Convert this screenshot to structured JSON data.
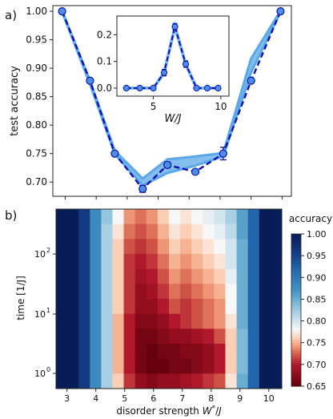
{
  "panel_a": {
    "panel_label": "a)",
    "chart_data": {
      "type": "line",
      "ylabel": "test accuracy",
      "xlabel": "",
      "ylim": [
        0.675,
        1.01
      ],
      "yticks": [
        "0.70",
        "0.75",
        "0.80",
        "0.85",
        "0.90",
        "0.95",
        "1.00"
      ],
      "x": [
        3,
        4,
        5,
        6,
        7,
        8,
        9,
        10
      ],
      "series": [
        {
          "values": [
            1.0,
            0.878,
            0.75,
            0.688,
            0.73,
            0.718,
            0.75,
            0.878
          ],
          "style": "dashed-markers",
          "color": "#1010b0",
          "marker_fill": "#4a90e8",
          "errors": [
            0,
            0,
            0,
            0.006,
            0.005,
            0.01,
            0,
            0
          ]
        },
        {
          "values": [
            1.0,
            0.875,
            0.752,
            0.7,
            0.733,
            0.735,
            0.752,
            0.905
          ],
          "style": "band",
          "color": "#5aa8e8",
          "band_halfwidth": [
            0,
            0.003,
            0.003,
            0.008,
            0.01,
            0.008,
            0.003,
            0.012
          ]
        }
      ],
      "x_points_main": [
        2.9,
        3.8,
        4.6,
        5.5,
        6.3,
        7.2,
        8.1,
        9.0,
        9.95
      ],
      "y_points_main": [
        1.0,
        0.878,
        0.75,
        0.688,
        0.73,
        0.718,
        0.75,
        0.878,
        1.0
      ],
      "inset": {
        "type": "line",
        "xlabel": "W/J",
        "xticks": [
          "5",
          "10"
        ],
        "yticks": [
          "0.0",
          "0.1",
          "0.2"
        ],
        "x": [
          3,
          4,
          5,
          5.8,
          6.6,
          7.4,
          8.2,
          9.0,
          9.8
        ],
        "y": [
          0.0,
          0.0,
          0.0,
          0.058,
          0.23,
          0.09,
          0.0,
          0.0,
          0.0
        ],
        "errors": [
          0.003,
          0.003,
          0.003,
          0.012,
          0.012,
          0.012,
          0.003,
          0.003,
          0.003
        ],
        "xlim": [
          2.3,
          10.6
        ],
        "ylim": [
          -0.03,
          0.27
        ]
      }
    }
  },
  "panel_b": {
    "panel_label": "b)",
    "chart_data": {
      "type": "heatmap",
      "xlabel": "disorder strength W*/J",
      "ylabel": "time [1/J]",
      "xticks": [
        "3",
        "4",
        "5",
        "6",
        "7",
        "8",
        "9",
        "10"
      ],
      "yticks": [
        "10",
        "10",
        "10"
      ],
      "ytick_exps": [
        "0",
        "1",
        "2"
      ],
      "colorbar_title": "accuracy",
      "colorbar_ticks": [
        "1.00",
        "0.95",
        "0.90",
        "0.85",
        "0.80",
        "0.75",
        "0.70",
        "0.65"
      ],
      "vmin": 0.65,
      "vmax": 1.0,
      "rows": [
        [
          1.0,
          1.0,
          0.96,
          0.88,
          0.83,
          0.78,
          0.74,
          0.73,
          0.74,
          0.76,
          0.78,
          0.77,
          0.78,
          0.79,
          0.8,
          0.82,
          0.86,
          0.92,
          1.0,
          1.0
        ],
        [
          1.0,
          1.0,
          0.96,
          0.88,
          0.82,
          0.77,
          0.73,
          0.72,
          0.73,
          0.75,
          0.77,
          0.76,
          0.77,
          0.78,
          0.79,
          0.81,
          0.86,
          0.92,
          1.0,
          1.0
        ],
        [
          1.0,
          1.0,
          0.96,
          0.88,
          0.82,
          0.76,
          0.72,
          0.71,
          0.72,
          0.74,
          0.76,
          0.75,
          0.76,
          0.77,
          0.78,
          0.8,
          0.85,
          0.92,
          1.0,
          1.0
        ],
        [
          1.0,
          1.0,
          0.96,
          0.88,
          0.82,
          0.76,
          0.71,
          0.7,
          0.71,
          0.73,
          0.75,
          0.74,
          0.75,
          0.76,
          0.77,
          0.8,
          0.85,
          0.92,
          1.0,
          1.0
        ],
        [
          1.0,
          1.0,
          0.96,
          0.88,
          0.82,
          0.76,
          0.71,
          0.69,
          0.7,
          0.72,
          0.74,
          0.73,
          0.74,
          0.75,
          0.76,
          0.79,
          0.85,
          0.92,
          1.0,
          1.0
        ],
        [
          1.0,
          1.0,
          0.96,
          0.88,
          0.82,
          0.76,
          0.71,
          0.68,
          0.69,
          0.71,
          0.73,
          0.72,
          0.73,
          0.74,
          0.75,
          0.78,
          0.85,
          0.92,
          1.0,
          1.0
        ],
        [
          1.0,
          1.0,
          0.96,
          0.88,
          0.82,
          0.76,
          0.71,
          0.68,
          0.68,
          0.7,
          0.72,
          0.71,
          0.72,
          0.73,
          0.74,
          0.78,
          0.85,
          0.92,
          1.0,
          1.0
        ],
        [
          1.0,
          1.0,
          0.96,
          0.88,
          0.82,
          0.75,
          0.7,
          0.67,
          0.67,
          0.68,
          0.7,
          0.71,
          0.72,
          0.73,
          0.74,
          0.77,
          0.85,
          0.92,
          1.0,
          1.0
        ],
        [
          1.0,
          1.0,
          0.96,
          0.88,
          0.82,
          0.75,
          0.7,
          0.66,
          0.66,
          0.67,
          0.68,
          0.68,
          0.69,
          0.7,
          0.72,
          0.76,
          0.84,
          0.92,
          1.0,
          1.0
        ],
        [
          1.0,
          1.0,
          0.96,
          0.88,
          0.82,
          0.75,
          0.7,
          0.66,
          0.65,
          0.66,
          0.66,
          0.67,
          0.67,
          0.68,
          0.7,
          0.76,
          0.84,
          0.92,
          1.0,
          1.0
        ],
        [
          1.0,
          1.0,
          0.96,
          0.88,
          0.82,
          0.75,
          0.7,
          0.66,
          0.65,
          0.65,
          0.66,
          0.66,
          0.67,
          0.68,
          0.7,
          0.76,
          0.84,
          0.92,
          1.0,
          1.0
        ],
        [
          1.0,
          1.0,
          0.96,
          0.88,
          0.82,
          0.76,
          0.71,
          0.68,
          0.67,
          0.68,
          0.68,
          0.69,
          0.7,
          0.71,
          0.72,
          0.77,
          0.85,
          0.92,
          1.0,
          1.0
        ]
      ]
    }
  }
}
